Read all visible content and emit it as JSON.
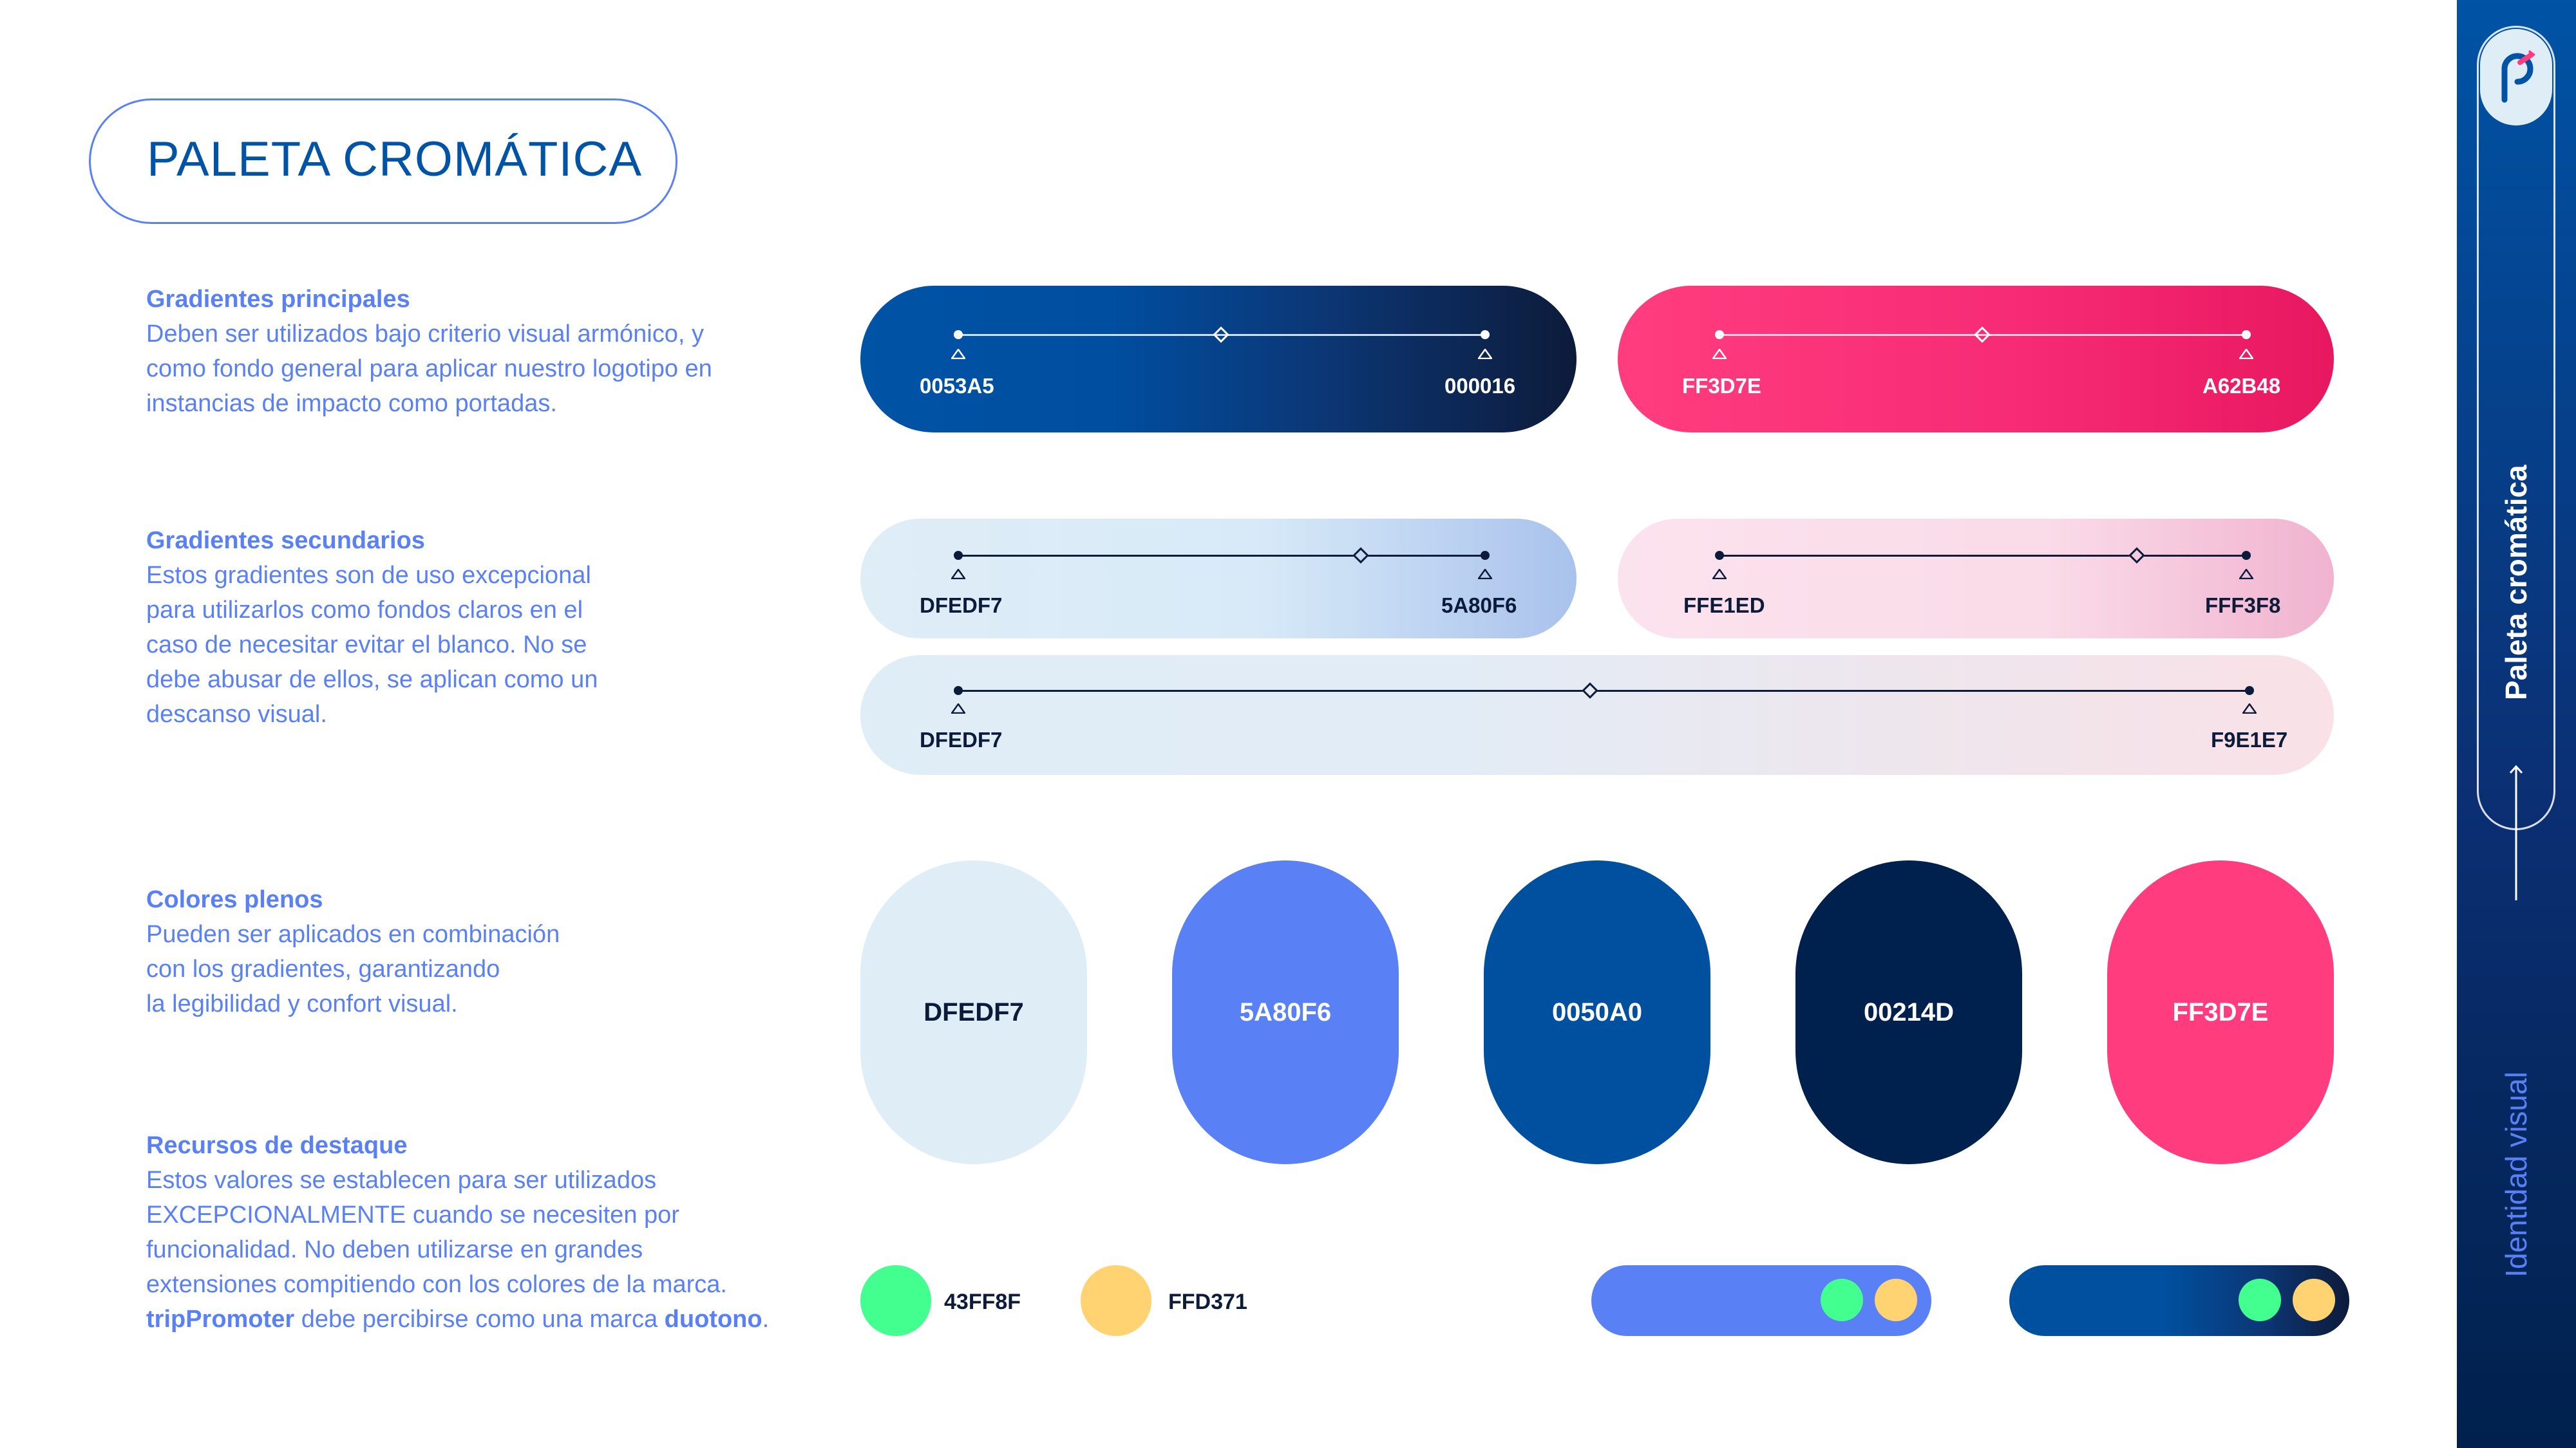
{
  "title": "PALETA CROMÁTICA",
  "sections": {
    "principales": {
      "title": "Gradientes principales",
      "lines": [
        "Deben ser utilizados bajo criterio visual armónico, y",
        "como fondo general para aplicar nuestro logotipo en",
        "instancias de impacto como portadas."
      ]
    },
    "secundarios": {
      "title": "Gradientes secundarios",
      "lines": [
        "Estos gradientes son de uso excepcional",
        "para utilizarlos como fondos claros en el",
        "caso de necesitar evitar el blanco. No se",
        "debe abusar de ellos, se aplican como un",
        "descanso visual."
      ]
    },
    "plenos": {
      "title": "Colores plenos",
      "lines": [
        "Pueden ser aplicados en combinación",
        "con los gradientes, garantizando",
        "la legibilidad y confort visual."
      ]
    },
    "destaque": {
      "title": "Recursos de destaque",
      "lines": [
        "Estos valores se establecen para ser utilizados",
        "EXCEPCIONALMENTE cuando se necesiten por",
        "funcionalidad. No deben utilizarse en grandes",
        "extensiones compitiendo con los colores de la marca."
      ],
      "last_line": {
        "brand": "tripPromoter",
        "middle": " debe percibirse como una marca ",
        "emph": "duotono",
        "end": "."
      }
    }
  },
  "gradients": {
    "blue": {
      "start": "0053A5",
      "end": "000016",
      "start_color": "#0053a5",
      "end_color": "#0d1b3a"
    },
    "pink": {
      "start": "FF3D7E",
      "end": "A62B48",
      "start_color": "#ff3d7e",
      "end_color": "#e8185f"
    },
    "light_blue": {
      "start": "DFEDF7",
      "end": "5A80F6",
      "start_color": "#dfedf7",
      "end_color": "#a9c2ec"
    },
    "light_pink": {
      "start": "FFE1ED",
      "end": "FFF3F8",
      "start_color": "#fbe1ec",
      "end_color": "#f0b3cf"
    },
    "wide": {
      "start": "DFEDF7",
      "end": "F9E1E7",
      "start_color": "#dfedf7",
      "end_color": "#f9e1e7"
    }
  },
  "swatches": [
    {
      "label": "DFEDF7",
      "color": "#dfedf7",
      "text_color": "#0d1b3a"
    },
    {
      "label": "5A80F6",
      "color": "#5a80f6",
      "text_color": "#ffffff"
    },
    {
      "label": "0050A0",
      "color": "#0050a0",
      "text_color": "#ffffff"
    },
    {
      "label": "00214D",
      "color": "#00214d",
      "text_color": "#ffffff"
    },
    {
      "label": "FF3D7E",
      "color": "#ff3d7e",
      "text_color": "#ffffff"
    }
  ],
  "accents": [
    {
      "label": "43FF8F",
      "color": "#43ff8f"
    },
    {
      "label": "FFD371",
      "color": "#ffd371"
    }
  ],
  "sidebar": {
    "section": "Paleta cromática",
    "category": "Identidad visual"
  },
  "colors": {
    "brand_blue": "#0053a5",
    "accent_blue": "#5a80f6",
    "navy": "#00214d",
    "pink": "#ff3d7e"
  }
}
